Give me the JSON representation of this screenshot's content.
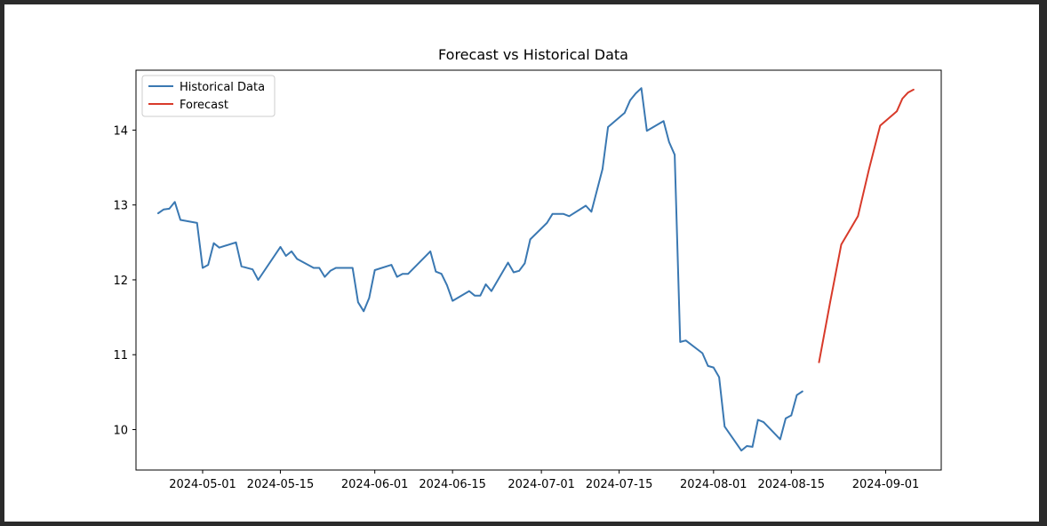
{
  "colors": {
    "historical": "#3a78b2",
    "forecast": "#d83a2a",
    "frame": "#2b2b2b",
    "background": "#ffffff"
  },
  "chart_data": {
    "type": "line",
    "title": "Forecast vs Historical Data",
    "xlabel": "",
    "ylabel": "",
    "x_ticks": [
      "2024-05-01",
      "2024-05-15",
      "2024-06-01",
      "2024-06-15",
      "2024-07-01",
      "2024-07-15",
      "2024-08-01",
      "2024-08-15",
      "2024-09-01"
    ],
    "y_ticks": [
      10,
      11,
      12,
      13,
      14
    ],
    "xlim": [
      "2024-04-19",
      "2024-09-11"
    ],
    "ylim": [
      9.46,
      14.8
    ],
    "grid": false,
    "legend_position": "top-left",
    "series": [
      {
        "name": "Historical Data",
        "color": "#3a78b2",
        "points": [
          [
            "2024-04-23",
            12.89
          ],
          [
            "2024-04-24",
            12.94
          ],
          [
            "2024-04-25",
            12.95
          ],
          [
            "2024-04-26",
            13.04
          ],
          [
            "2024-04-27",
            12.8
          ],
          [
            "2024-04-30",
            12.76
          ],
          [
            "2024-05-01",
            12.16
          ],
          [
            "2024-05-02",
            12.2
          ],
          [
            "2024-05-03",
            12.49
          ],
          [
            "2024-05-04",
            12.43
          ],
          [
            "2024-05-07",
            12.5
          ],
          [
            "2024-05-08",
            12.18
          ],
          [
            "2024-05-10",
            12.14
          ],
          [
            "2024-05-11",
            12.0
          ],
          [
            "2024-05-15",
            12.44
          ],
          [
            "2024-05-16",
            12.32
          ],
          [
            "2024-05-17",
            12.38
          ],
          [
            "2024-05-18",
            12.28
          ],
          [
            "2024-05-21",
            12.16
          ],
          [
            "2024-05-22",
            12.16
          ],
          [
            "2024-05-23",
            12.04
          ],
          [
            "2024-05-24",
            12.12
          ],
          [
            "2024-05-25",
            12.16
          ],
          [
            "2024-05-28",
            12.16
          ],
          [
            "2024-05-29",
            11.7
          ],
          [
            "2024-05-30",
            11.58
          ],
          [
            "2024-05-31",
            11.76
          ],
          [
            "2024-06-01",
            12.13
          ],
          [
            "2024-06-04",
            12.2
          ],
          [
            "2024-06-05",
            12.04
          ],
          [
            "2024-06-06",
            12.08
          ],
          [
            "2024-06-07",
            12.08
          ],
          [
            "2024-06-11",
            12.38
          ],
          [
            "2024-06-12",
            12.11
          ],
          [
            "2024-06-13",
            12.08
          ],
          [
            "2024-06-14",
            11.93
          ],
          [
            "2024-06-15",
            11.72
          ],
          [
            "2024-06-18",
            11.85
          ],
          [
            "2024-06-19",
            11.79
          ],
          [
            "2024-06-20",
            11.79
          ],
          [
            "2024-06-21",
            11.94
          ],
          [
            "2024-06-22",
            11.85
          ],
          [
            "2024-06-25",
            12.23
          ],
          [
            "2024-06-26",
            12.1
          ],
          [
            "2024-06-27",
            12.12
          ],
          [
            "2024-06-28",
            12.22
          ],
          [
            "2024-06-29",
            12.54
          ],
          [
            "2024-07-02",
            12.76
          ],
          [
            "2024-07-03",
            12.88
          ],
          [
            "2024-07-05",
            12.88
          ],
          [
            "2024-07-06",
            12.85
          ],
          [
            "2024-07-09",
            12.99
          ],
          [
            "2024-07-10",
            12.91
          ],
          [
            "2024-07-12",
            13.48
          ],
          [
            "2024-07-13",
            14.04
          ],
          [
            "2024-07-16",
            14.23
          ],
          [
            "2024-07-17",
            14.4
          ],
          [
            "2024-07-18",
            14.49
          ],
          [
            "2024-07-19",
            14.56
          ],
          [
            "2024-07-20",
            13.99
          ],
          [
            "2024-07-23",
            14.12
          ],
          [
            "2024-07-24",
            13.84
          ],
          [
            "2024-07-25",
            13.67
          ],
          [
            "2024-07-26",
            11.17
          ],
          [
            "2024-07-27",
            11.19
          ],
          [
            "2024-07-30",
            11.02
          ],
          [
            "2024-07-31",
            10.85
          ],
          [
            "2024-08-01",
            10.83
          ],
          [
            "2024-08-02",
            10.7
          ],
          [
            "2024-08-03",
            10.04
          ],
          [
            "2024-08-06",
            9.72
          ],
          [
            "2024-08-07",
            9.78
          ],
          [
            "2024-08-08",
            9.77
          ],
          [
            "2024-08-09",
            10.13
          ],
          [
            "2024-08-10",
            10.1
          ],
          [
            "2024-08-13",
            9.87
          ],
          [
            "2024-08-14",
            10.15
          ],
          [
            "2024-08-15",
            10.19
          ],
          [
            "2024-08-16",
            10.46
          ],
          [
            "2024-08-17",
            10.51
          ]
        ]
      },
      {
        "name": "Forecast",
        "color": "#d83a2a",
        "points": [
          [
            "2024-08-20",
            10.9
          ],
          [
            "2024-08-22",
            11.7
          ],
          [
            "2024-08-24",
            12.47
          ],
          [
            "2024-08-27",
            12.85
          ],
          [
            "2024-08-29",
            13.48
          ],
          [
            "2024-08-31",
            14.06
          ],
          [
            "2024-09-03",
            14.25
          ],
          [
            "2024-09-04",
            14.42
          ],
          [
            "2024-09-05",
            14.5
          ],
          [
            "2024-09-06",
            14.54
          ]
        ]
      }
    ]
  }
}
